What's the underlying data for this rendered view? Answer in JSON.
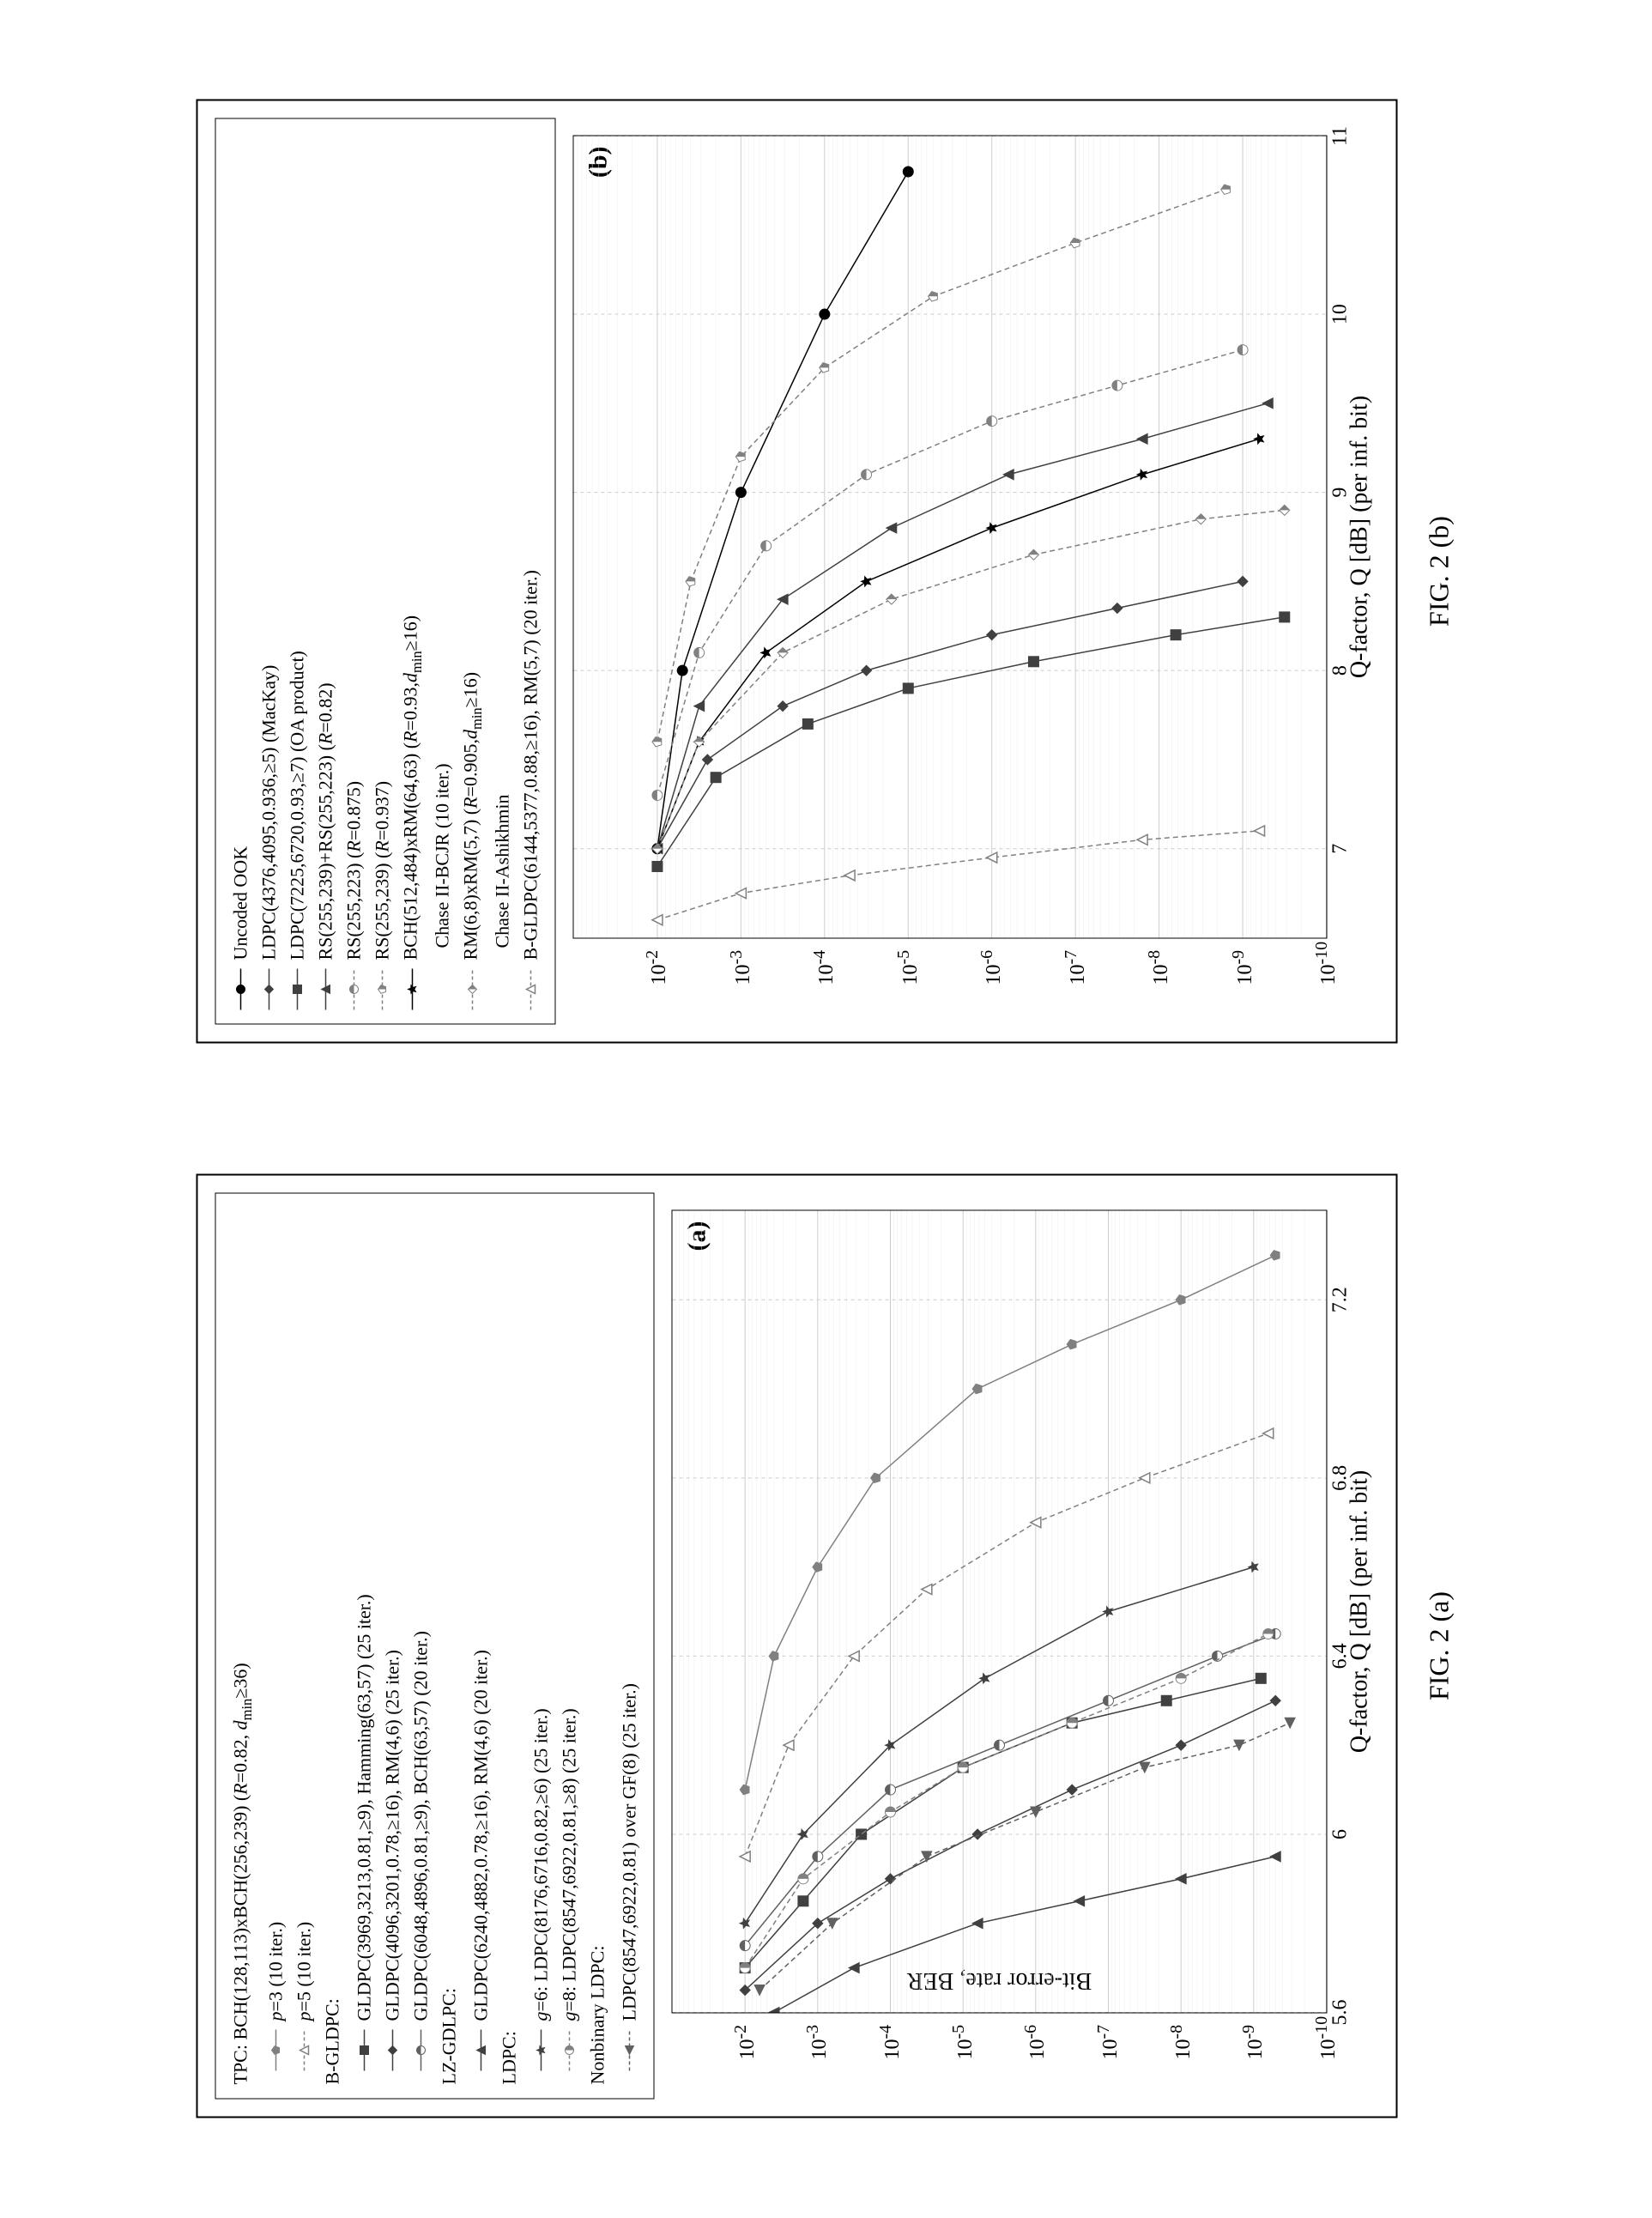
{
  "figure_a": {
    "caption": "FIG. 2 (a)",
    "panel_tag": "(a)",
    "ylabel": "Bit-error rate, BER",
    "xlabel": "Q-factor, Q [dB] (per inf. bit)",
    "xlim": [
      5.6,
      7.4
    ],
    "ylim_exp": [
      -10,
      -1
    ],
    "xticks": [
      5.6,
      6.0,
      6.4,
      6.8,
      7.2
    ],
    "yticks_exp": [
      -2,
      -3,
      -4,
      -5,
      -6,
      -7,
      -8,
      -9,
      -10
    ],
    "grid_color": "#cccccc",
    "background_color": "#ffffff",
    "axis_fontsize": 28,
    "tick_fontsize": 24,
    "legend_fontsize": 22,
    "legend_groups": [
      {
        "title": "TPC: BCH(128,113)xBCH(256,239) (R=0.82, d_min≥36)",
        "items": [
          {
            "label": "p=3 (10 iter.)",
            "marker": "pentagon",
            "color": "#808080",
            "style": "solid"
          },
          {
            "label": "p=5 (10 iter.)",
            "marker": "triangle-open",
            "color": "#808080",
            "style": "dash"
          }
        ]
      },
      {
        "title": "B-GLDPC:",
        "items": [
          {
            "label": "GLDPC(3969,3213,0.81,≥9), Hamming(63,57) (25 iter.)",
            "marker": "square",
            "color": "#404040",
            "style": "solid"
          },
          {
            "label": "GLDPC(4096,3201,0.78,≥16), RM(4,6) (25 iter.)",
            "marker": "diamond",
            "color": "#404040",
            "style": "solid"
          },
          {
            "label": "GLDPC(6048,4896,0.81,≥9), BCH(63,57) (20 iter.)",
            "marker": "circle-half",
            "color": "#606060",
            "style": "solid"
          }
        ]
      },
      {
        "title": "LZ-GDLPC:",
        "items": [
          {
            "label": "GLDPC(6240,4882,0.78,≥16), RM(4,6) (20 iter.)",
            "marker": "triangle",
            "color": "#404040",
            "style": "solid"
          }
        ]
      },
      {
        "title": "LDPC:",
        "items": [
          {
            "label": "g=6: LDPC(8176,6716,0.82,≥6) (25 iter.)",
            "marker": "star",
            "color": "#404040",
            "style": "solid"
          },
          {
            "label": "g=8: LDPC(8547,6922,0.81,≥8) (25 iter.)",
            "marker": "circle-half-v",
            "color": "#808080",
            "style": "dash"
          }
        ]
      },
      {
        "title": "Nonbinary LDPC:",
        "items": [
          {
            "label": "LDPC(8547,6922,0.81) over GF(8) (25 iter.)",
            "marker": "triangle-left",
            "color": "#606060",
            "style": "dash"
          }
        ]
      }
    ],
    "series": [
      {
        "marker": "pentagon",
        "color": "#808080",
        "style": "solid",
        "points": [
          [
            6.1,
            -2
          ],
          [
            6.4,
            -2.4
          ],
          [
            6.6,
            -3
          ],
          [
            6.8,
            -3.8
          ],
          [
            7.0,
            -5.2
          ],
          [
            7.1,
            -6.5
          ],
          [
            7.2,
            -8
          ],
          [
            7.3,
            -9.3
          ]
        ]
      },
      {
        "marker": "triangle-open",
        "color": "#808080",
        "style": "dash",
        "points": [
          [
            5.95,
            -2
          ],
          [
            6.2,
            -2.6
          ],
          [
            6.4,
            -3.5
          ],
          [
            6.55,
            -4.5
          ],
          [
            6.7,
            -6
          ],
          [
            6.8,
            -7.5
          ],
          [
            6.9,
            -9.2
          ]
        ]
      },
      {
        "marker": "square",
        "color": "#404040",
        "style": "solid",
        "points": [
          [
            5.7,
            -2
          ],
          [
            5.85,
            -2.8
          ],
          [
            6.0,
            -3.6
          ],
          [
            6.15,
            -5
          ],
          [
            6.25,
            -6.5
          ],
          [
            6.3,
            -7.8
          ],
          [
            6.35,
            -9.1
          ]
        ]
      },
      {
        "marker": "diamond",
        "color": "#404040",
        "style": "solid",
        "points": [
          [
            5.65,
            -2
          ],
          [
            5.8,
            -3
          ],
          [
            5.9,
            -4
          ],
          [
            6.0,
            -5.2
          ],
          [
            6.1,
            -6.5
          ],
          [
            6.2,
            -8
          ],
          [
            6.3,
            -9.3
          ]
        ]
      },
      {
        "marker": "circle-half",
        "color": "#606060",
        "style": "solid",
        "points": [
          [
            5.75,
            -2
          ],
          [
            5.95,
            -3
          ],
          [
            6.1,
            -4
          ],
          [
            6.2,
            -5.5
          ],
          [
            6.3,
            -7
          ],
          [
            6.4,
            -8.5
          ],
          [
            6.45,
            -9.3
          ]
        ]
      },
      {
        "marker": "triangle",
        "color": "#404040",
        "style": "solid",
        "points": [
          [
            5.6,
            -2.4
          ],
          [
            5.7,
            -3.5
          ],
          [
            5.8,
            -5.2
          ],
          [
            5.85,
            -6.6
          ],
          [
            5.9,
            -8
          ],
          [
            5.95,
            -9.3
          ]
        ]
      },
      {
        "marker": "star",
        "color": "#404040",
        "style": "solid",
        "points": [
          [
            5.8,
            -2
          ],
          [
            6.0,
            -2.8
          ],
          [
            6.2,
            -4
          ],
          [
            6.35,
            -5.3
          ],
          [
            6.5,
            -7
          ],
          [
            6.6,
            -9
          ]
        ]
      },
      {
        "marker": "circle-half-v",
        "color": "#808080",
        "style": "dash",
        "points": [
          [
            5.7,
            -2
          ],
          [
            5.9,
            -2.8
          ],
          [
            6.05,
            -4
          ],
          [
            6.15,
            -5
          ],
          [
            6.25,
            -6.5
          ],
          [
            6.35,
            -8
          ],
          [
            6.45,
            -9.2
          ]
        ]
      },
      {
        "marker": "triangle-left",
        "color": "#606060",
        "style": "dash",
        "points": [
          [
            5.65,
            -2.2
          ],
          [
            5.8,
            -3.2
          ],
          [
            5.95,
            -4.5
          ],
          [
            6.05,
            -6
          ],
          [
            6.15,
            -7.5
          ],
          [
            6.2,
            -8.8
          ],
          [
            6.25,
            -9.5
          ]
        ]
      }
    ]
  },
  "figure_b": {
    "caption": "FIG. 2 (b)",
    "panel_tag": "(b)",
    "xlabel": "Q-factor, Q [dB] (per inf. bit)",
    "xlim": [
      6.5,
      11
    ],
    "ylim_exp": [
      -10,
      -1
    ],
    "xticks": [
      7,
      8,
      9,
      10,
      11
    ],
    "yticks_exp": [
      -2,
      -3,
      -4,
      -5,
      -6,
      -7,
      -8,
      -9,
      -10
    ],
    "grid_color": "#cccccc",
    "background_color": "#ffffff",
    "axis_fontsize": 28,
    "tick_fontsize": 24,
    "legend_fontsize": 22,
    "legend_items": [
      {
        "label": "Uncoded OOK",
        "marker": "circle",
        "color": "#000000",
        "style": "solid"
      },
      {
        "label": "LDPC(4376,4095,0.936,≥5) (MacKay)",
        "marker": "diamond",
        "color": "#404040",
        "style": "solid"
      },
      {
        "label": "LDPC(7225,6720,0.93,≥7) (OA product)",
        "marker": "square",
        "color": "#404040",
        "style": "solid"
      },
      {
        "label": "RS(255,239)+RS(255,223) (R=0.82)",
        "marker": "triangle",
        "color": "#404040",
        "style": "solid"
      },
      {
        "label": "RS(255,223) (R=0.875)",
        "marker": "circle-half",
        "color": "#808080",
        "style": "dash"
      },
      {
        "label": "RS(255,239) (R=0.937)",
        "marker": "pentagon-half",
        "color": "#808080",
        "style": "dash"
      },
      {
        "label": "BCH(512,484)xRM(64,63) (R=0.93,d_min≥16)",
        "marker": "star",
        "color": "#000000",
        "style": "solid",
        "sub": "Chase II-BCJR (10 iter.)"
      },
      {
        "label": "RM(6,8)xRM(5,7) (R=0.905,d_min≥16)",
        "marker": "diamond-half",
        "color": "#808080",
        "style": "dash",
        "sub": "Chase II-Ashikhmin"
      },
      {
        "label": "B-GLDPC(6144,5377,0.88,≥16), RM(5,7) (20 iter.)",
        "marker": "triangle-open",
        "color": "#808080",
        "style": "dash"
      }
    ],
    "series": [
      {
        "marker": "circle",
        "color": "#000000",
        "style": "solid",
        "points": [
          [
            7,
            -2
          ],
          [
            8,
            -2.3
          ],
          [
            9,
            -3
          ],
          [
            10,
            -4
          ],
          [
            10.8,
            -5
          ]
        ]
      },
      {
        "marker": "diamond",
        "color": "#404040",
        "style": "solid",
        "points": [
          [
            7,
            -2
          ],
          [
            7.5,
            -2.6
          ],
          [
            7.8,
            -3.5
          ],
          [
            8.0,
            -4.5
          ],
          [
            8.2,
            -6
          ],
          [
            8.35,
            -7.5
          ],
          [
            8.5,
            -9
          ]
        ]
      },
      {
        "marker": "square",
        "color": "#404040",
        "style": "solid",
        "points": [
          [
            6.9,
            -2
          ],
          [
            7.4,
            -2.7
          ],
          [
            7.7,
            -3.8
          ],
          [
            7.9,
            -5
          ],
          [
            8.05,
            -6.5
          ],
          [
            8.2,
            -8.2
          ],
          [
            8.3,
            -9.5
          ]
        ]
      },
      {
        "marker": "triangle",
        "color": "#404040",
        "style": "solid",
        "points": [
          [
            7,
            -2
          ],
          [
            7.8,
            -2.5
          ],
          [
            8.4,
            -3.5
          ],
          [
            8.8,
            -4.8
          ],
          [
            9.1,
            -6.2
          ],
          [
            9.3,
            -7.8
          ],
          [
            9.5,
            -9.3
          ]
        ]
      },
      {
        "marker": "circle-half",
        "color": "#808080",
        "style": "dash",
        "points": [
          [
            7.3,
            -2
          ],
          [
            8.1,
            -2.5
          ],
          [
            8.7,
            -3.3
          ],
          [
            9.1,
            -4.5
          ],
          [
            9.4,
            -6
          ],
          [
            9.6,
            -7.5
          ],
          [
            9.8,
            -9
          ]
        ]
      },
      {
        "marker": "pentagon-half",
        "color": "#808080",
        "style": "dash",
        "points": [
          [
            7.6,
            -2
          ],
          [
            8.5,
            -2.4
          ],
          [
            9.2,
            -3
          ],
          [
            9.7,
            -4
          ],
          [
            10.1,
            -5.3
          ],
          [
            10.4,
            -7
          ],
          [
            10.7,
            -8.8
          ]
        ]
      },
      {
        "marker": "star",
        "color": "#000000",
        "style": "solid",
        "points": [
          [
            7,
            -2
          ],
          [
            7.6,
            -2.5
          ],
          [
            8.1,
            -3.3
          ],
          [
            8.5,
            -4.5
          ],
          [
            8.8,
            -6
          ],
          [
            9.1,
            -7.8
          ],
          [
            9.3,
            -9.2
          ]
        ]
      },
      {
        "marker": "diamond-half",
        "color": "#808080",
        "style": "dash",
        "points": [
          [
            7,
            -2
          ],
          [
            7.6,
            -2.5
          ],
          [
            8.1,
            -3.5
          ],
          [
            8.4,
            -4.8
          ],
          [
            8.65,
            -6.5
          ],
          [
            8.85,
            -8.5
          ],
          [
            8.9,
            -9.5
          ]
        ]
      },
      {
        "marker": "triangle-open",
        "color": "#808080",
        "style": "dash",
        "points": [
          [
            6.6,
            -2
          ],
          [
            6.75,
            -3
          ],
          [
            6.85,
            -4.3
          ],
          [
            6.95,
            -6
          ],
          [
            7.05,
            -7.8
          ],
          [
            7.1,
            -9.2
          ]
        ]
      }
    ]
  }
}
